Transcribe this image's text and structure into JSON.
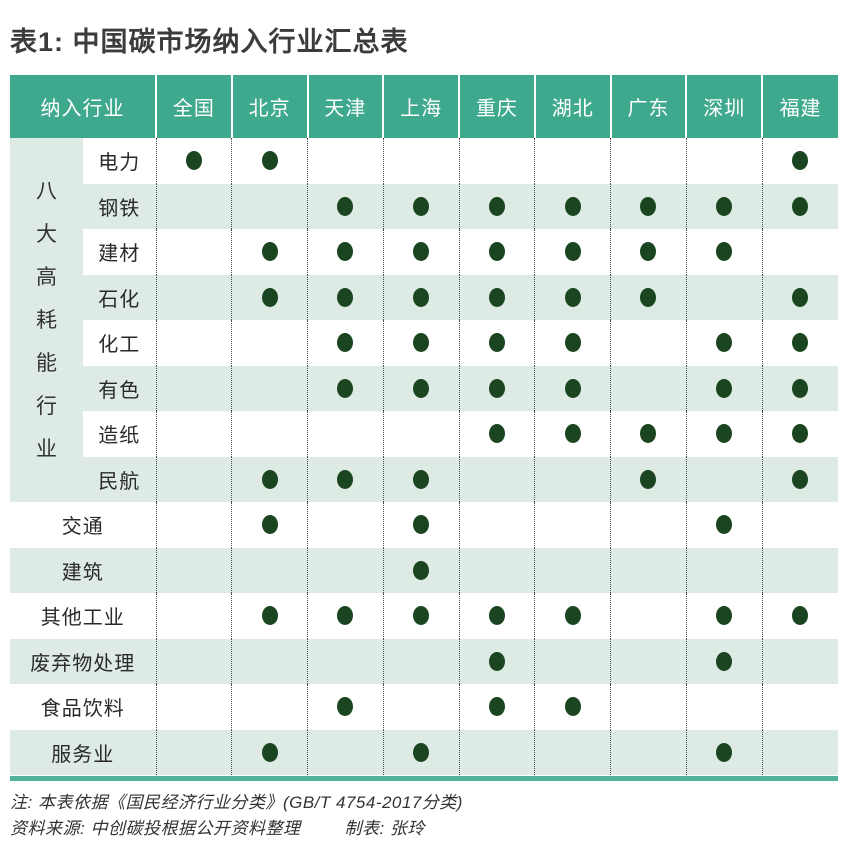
{
  "title": "表1: 中国碳市场纳入行业汇总表",
  "colors": {
    "header_bg": "#3fa98e",
    "row_alt_bg": "#deebe4",
    "dot": "#1a4520",
    "bottom_bar": "#4fb39a",
    "title_text": "#3c3c3c"
  },
  "chart_data": {
    "type": "table",
    "title": "表1: 中国碳市场纳入行业汇总表",
    "columns": [
      "纳入行业",
      "全国",
      "北京",
      "天津",
      "上海",
      "重庆",
      "湖北",
      "广东",
      "深圳",
      "福建"
    ],
    "group_label": "八大高耗能行业",
    "group_row_count": 8,
    "legend_note": "dots 数组按列顺序 全国/北京/天津/上海/重庆/湖北/广东/深圳/福建，1=纳入",
    "rows": [
      {
        "label": "电力",
        "in_group": true,
        "dots": [
          1,
          1,
          0,
          0,
          0,
          0,
          0,
          0,
          1
        ]
      },
      {
        "label": "钢铁",
        "in_group": true,
        "dots": [
          0,
          0,
          1,
          1,
          1,
          1,
          1,
          1,
          1
        ]
      },
      {
        "label": "建材",
        "in_group": true,
        "dots": [
          0,
          1,
          1,
          1,
          1,
          1,
          1,
          1,
          0
        ]
      },
      {
        "label": "石化",
        "in_group": true,
        "dots": [
          0,
          1,
          1,
          1,
          1,
          1,
          1,
          0,
          1
        ]
      },
      {
        "label": "化工",
        "in_group": true,
        "dots": [
          0,
          0,
          1,
          1,
          1,
          1,
          0,
          1,
          1
        ]
      },
      {
        "label": "有色",
        "in_group": true,
        "dots": [
          0,
          0,
          1,
          1,
          1,
          1,
          0,
          1,
          1
        ]
      },
      {
        "label": "造纸",
        "in_group": true,
        "dots": [
          0,
          0,
          0,
          0,
          1,
          1,
          1,
          1,
          1
        ]
      },
      {
        "label": "民航",
        "in_group": true,
        "dots": [
          0,
          1,
          1,
          1,
          0,
          0,
          1,
          0,
          1
        ]
      },
      {
        "label": "交通",
        "in_group": false,
        "dots": [
          0,
          1,
          0,
          1,
          0,
          0,
          0,
          1,
          0
        ]
      },
      {
        "label": "建筑",
        "in_group": false,
        "dots": [
          0,
          0,
          0,
          1,
          0,
          0,
          0,
          0,
          0
        ]
      },
      {
        "label": "其他工业",
        "in_group": false,
        "dots": [
          0,
          1,
          1,
          1,
          1,
          1,
          0,
          1,
          1
        ]
      },
      {
        "label": "废弃物处理",
        "in_group": false,
        "dots": [
          0,
          0,
          0,
          0,
          1,
          0,
          0,
          1,
          0
        ]
      },
      {
        "label": "食品饮料",
        "in_group": false,
        "dots": [
          0,
          0,
          1,
          0,
          1,
          1,
          0,
          0,
          0
        ]
      },
      {
        "label": "服务业",
        "in_group": false,
        "dots": [
          0,
          1,
          0,
          1,
          0,
          0,
          0,
          1,
          0
        ]
      }
    ]
  },
  "footer": {
    "note": "注: 本表依据《国民经济行业分类》(GB/T 4754-2017分类)",
    "source": "资料来源: 中创碳投根据公开资料整理",
    "credit": "制表: 张玲"
  }
}
